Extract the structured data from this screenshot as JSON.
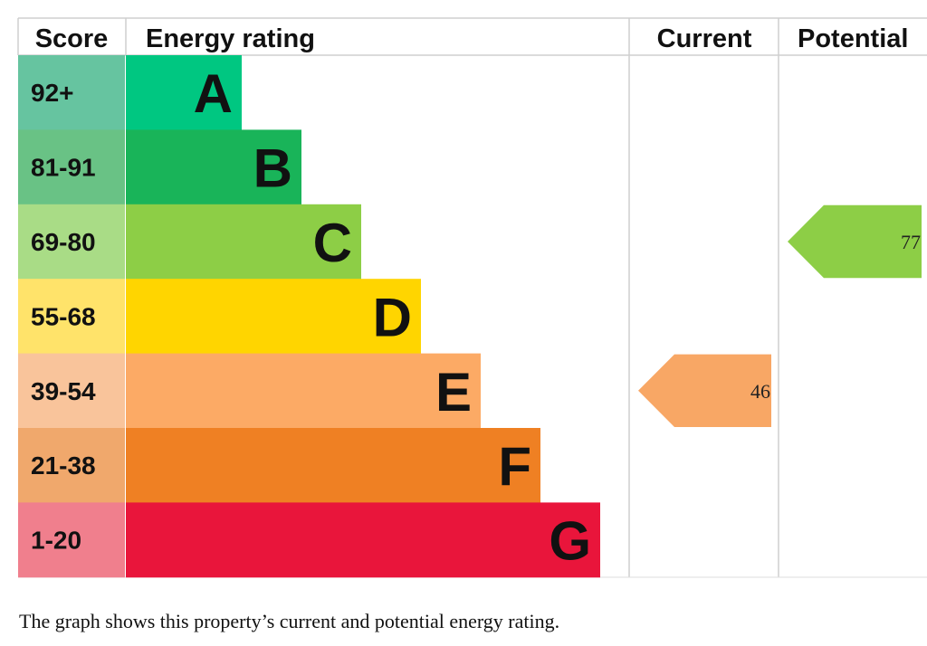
{
  "header": {
    "score_label": "Score",
    "rating_label": "Energy rating",
    "current_label": "Current",
    "potential_label": "Potential"
  },
  "caption": "The graph shows this property’s current and potential energy rating.",
  "chart_data": {
    "type": "bar",
    "title": "",
    "categories": [
      "A",
      "B",
      "C",
      "D",
      "E",
      "F",
      "G"
    ],
    "score_ranges": [
      "92+",
      "81-91",
      "69-80",
      "55-68",
      "39-54",
      "21-38",
      "1-20"
    ],
    "band_colors": [
      "#00c781",
      "#19b459",
      "#8dce46",
      "#ffd500",
      "#fcaa65",
      "#ef8023",
      "#e9153b"
    ],
    "score_colors": [
      "#66c4a0",
      "#69c285",
      "#a9dc86",
      "#ffe36a",
      "#f9c49b",
      "#f0a86c",
      "#f07f8d"
    ],
    "current": {
      "value": 46,
      "band": "E",
      "color": "#f8a765"
    },
    "potential": {
      "value": 77,
      "band": "C",
      "color": "#8dce46"
    }
  }
}
